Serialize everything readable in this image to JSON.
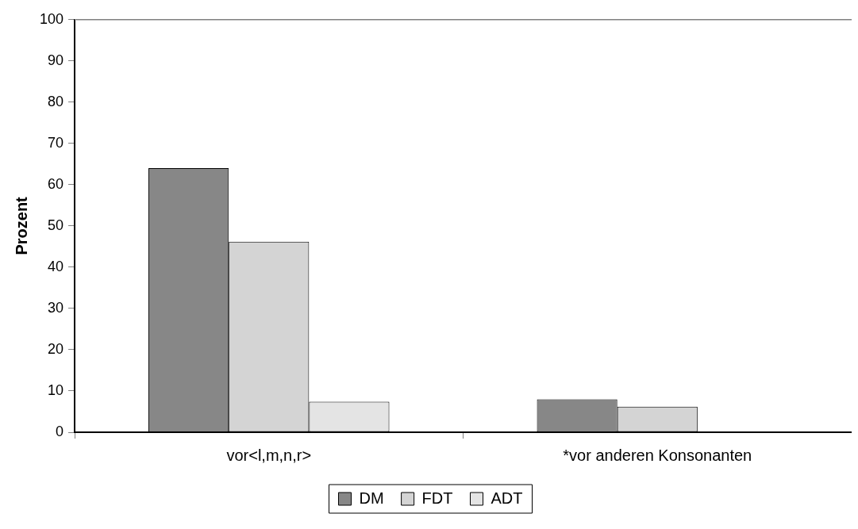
{
  "chart_data": {
    "type": "bar",
    "ylabel": "Prozent",
    "categories": [
      "vor<l,m,n,r>",
      "*vor anderen Konsonanten"
    ],
    "series": [
      {
        "name": "DM",
        "color": "#878787",
        "values": [
          64,
          8
        ]
      },
      {
        "name": "FDT",
        "color": "#d4d4d4",
        "values": [
          46.2,
          6.2
        ]
      },
      {
        "name": "ADT",
        "color": "#e4e4e4",
        "values": [
          7.4,
          0
        ]
      }
    ],
    "ylim": [
      0,
      100
    ],
    "yticks": [
      0,
      10,
      20,
      30,
      40,
      50,
      60,
      70,
      80,
      90,
      100
    ],
    "grid": false,
    "legend": "bottom"
  }
}
